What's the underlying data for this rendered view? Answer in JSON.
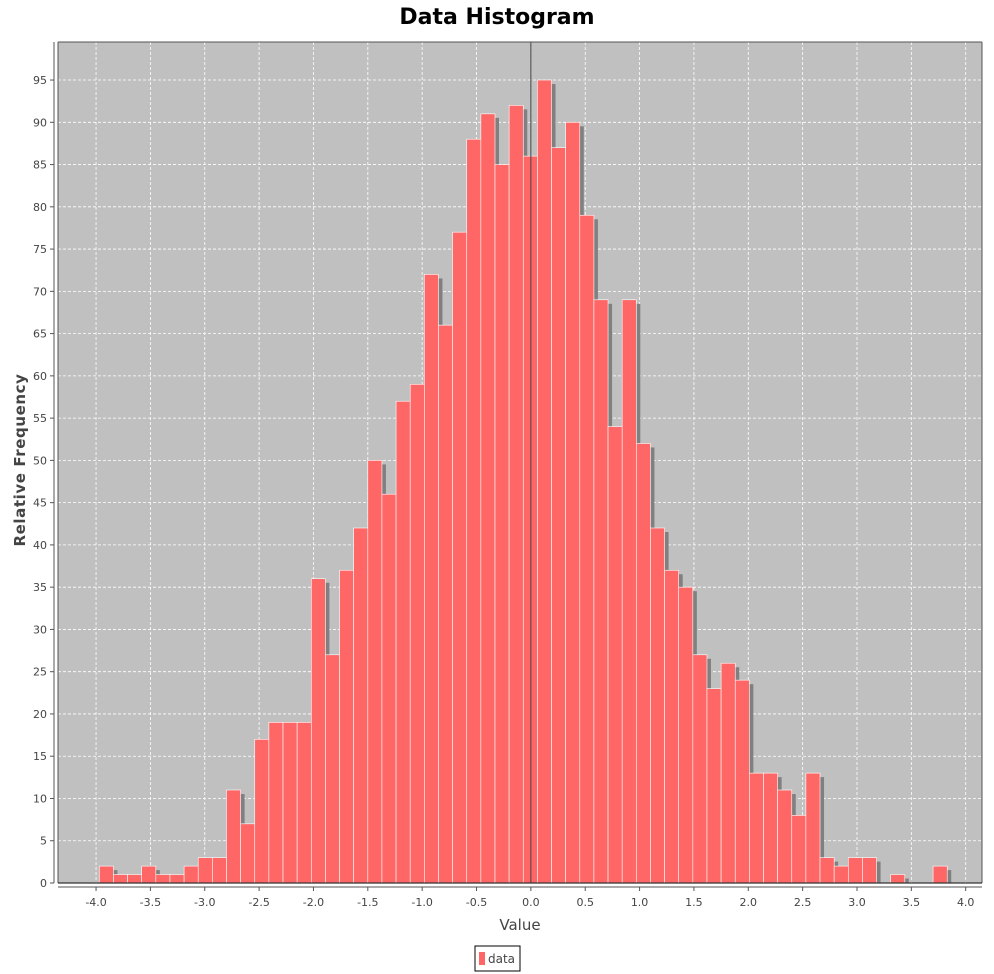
{
  "chart_data": {
    "type": "bar",
    "title": "Data Histogram",
    "xlabel": "Value",
    "ylabel": "Relative Frequency",
    "xlim": [
      -4.35,
      4.15
    ],
    "ylim": [
      0,
      99.5
    ],
    "x_ticks": [
      -4.0,
      -3.5,
      -3.0,
      -2.5,
      -2.0,
      -1.5,
      -1.0,
      -0.5,
      0.0,
      0.5,
      1.0,
      1.5,
      2.0,
      2.5,
      3.0,
      3.5,
      4.0
    ],
    "x_tick_labels": [
      "-4.0",
      "-3.5",
      "-3.0",
      "-2.5",
      "-2.0",
      "-1.5",
      "-1.0",
      "-0.5",
      "0.0",
      "0.5",
      "1.0",
      "1.5",
      "2.0",
      "2.5",
      "3.0",
      "3.5",
      "4.0"
    ],
    "y_ticks": [
      0,
      5,
      10,
      15,
      20,
      25,
      30,
      35,
      40,
      45,
      50,
      55,
      60,
      65,
      70,
      75,
      80,
      85,
      90,
      95
    ],
    "y_tick_labels": [
      "0",
      "5",
      "10",
      "15",
      "20",
      "25",
      "30",
      "35",
      "40",
      "45",
      "50",
      "55",
      "60",
      "65",
      "70",
      "75",
      "80",
      "85",
      "90",
      "95"
    ],
    "grid": true,
    "legend_position": "bottom-center",
    "series": [
      {
        "name": "data",
        "color": "#ff6666",
        "bin_width": 0.13,
        "bin_starts": [
          -3.97,
          -3.84,
          -3.71,
          -3.58,
          -3.45,
          -3.32,
          -3.19,
          -3.06,
          -2.93,
          -2.8,
          -2.67,
          -2.54,
          -2.41,
          -2.28,
          -2.15,
          -2.02,
          -1.89,
          -1.76,
          -1.63,
          -1.5,
          -1.37,
          -1.24,
          -1.11,
          -0.98,
          -0.85,
          -0.72,
          -0.59,
          -0.46,
          -0.33,
          -0.2,
          -0.07,
          0.06,
          0.19,
          0.32,
          0.45,
          0.58,
          0.71,
          0.84,
          0.97,
          1.1,
          1.23,
          1.36,
          1.49,
          1.62,
          1.75,
          1.88,
          2.01,
          2.14,
          2.27,
          2.4,
          2.53,
          2.66,
          2.79,
          2.92,
          3.05,
          3.18,
          3.31,
          3.44,
          3.57,
          3.7
        ],
        "values": [
          2,
          1,
          1,
          2,
          1,
          1,
          2,
          3,
          3,
          11,
          7,
          17,
          19,
          19,
          19,
          36,
          27,
          37,
          42,
          50,
          46,
          57,
          59,
          72,
          66,
          77,
          88,
          91,
          85,
          92,
          86,
          95,
          87,
          90,
          79,
          69,
          54,
          69,
          52,
          42,
          37,
          35,
          27,
          23,
          26,
          24,
          13,
          13,
          11,
          8,
          13,
          3,
          2,
          3,
          3,
          0,
          1,
          0,
          0,
          2
        ]
      }
    ]
  },
  "legend": {
    "label": "data"
  },
  "colors": {
    "plot_background": "#c0c0c0",
    "bar_fill": "#ff6666",
    "bar_shadow": "#808080",
    "gridline": "#ffffff"
  }
}
